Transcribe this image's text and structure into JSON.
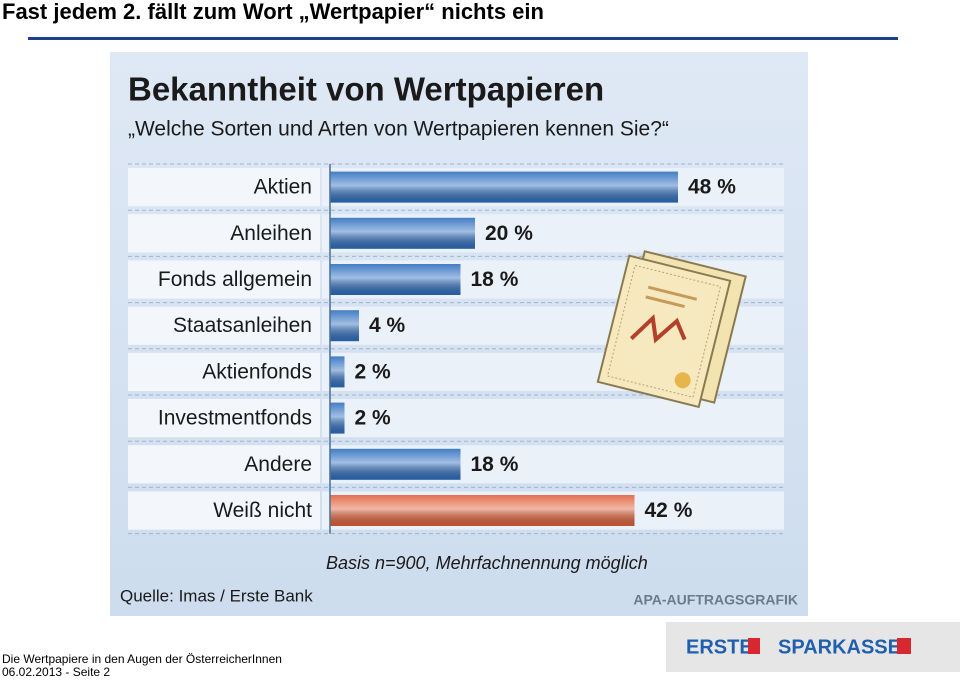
{
  "slide": {
    "title": "Fast jedem 2. fällt zum Wort „Wertpapier“ nichts ein",
    "footer_lines": [
      "Die Wertpapiere in den Augen der ÖsterreicherInnen",
      "06.02.2013 - Seite 2"
    ],
    "logos": [
      "ERSTE",
      "SPARKASSE"
    ]
  },
  "chart_data": {
    "type": "hbar",
    "title": "Bekanntheit von Wertpapieren",
    "subtitle": "„Welche Sorten und Arten von Wertpapieren kennen Sie?“",
    "categories": [
      "Aktien",
      "Anleihen",
      "Fonds allgemein",
      "Staatsanleihen",
      "Aktienfonds",
      "Investmentfonds",
      "Andere",
      "Weiß nicht"
    ],
    "values": [
      48,
      20,
      18,
      4,
      2,
      2,
      18,
      42
    ],
    "value_labels": [
      "48 %",
      "20 %",
      "18 %",
      "4 %",
      "2 %",
      "2 %",
      "18 %",
      "42 %"
    ],
    "colors": [
      "#2f6fbf",
      "#2f6fbf",
      "#2f6fbf",
      "#2f6fbf",
      "#2f6fbf",
      "#2f6fbf",
      "#2f6fbf",
      "#e0603a"
    ],
    "note": "Basis n=900, Mehrfachnennung möglich",
    "source": "Quelle: Imas / Erste Bank",
    "credit": "APA-AUFTRAGSGRAFIK"
  }
}
